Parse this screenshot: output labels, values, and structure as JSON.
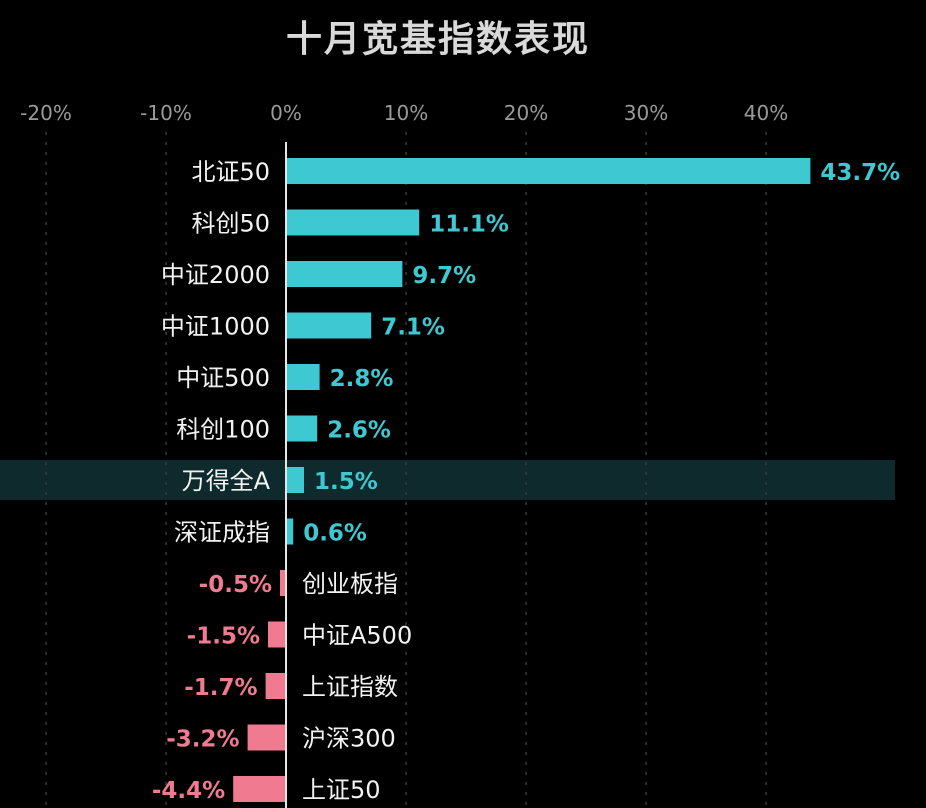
{
  "chart_data": {
    "type": "bar",
    "orientation": "horizontal",
    "title": "十月宽基指数表现",
    "xlabel": "",
    "ylabel": "",
    "xlim": [
      -20,
      45
    ],
    "x_ticks": [
      -20,
      -10,
      0,
      10,
      20,
      30,
      40
    ],
    "x_tick_labels": [
      "-20%",
      "-10%",
      "0%",
      "10%",
      "20%",
      "30%",
      "40%"
    ],
    "grid": "vertical-dashed",
    "legend": "none",
    "categories": [
      "北证50",
      "科创50",
      "中证2000",
      "中证1000",
      "中证500",
      "科创100",
      "万得全A",
      "深证成指",
      "创业板指",
      "中证A500",
      "上证指数",
      "沪深300",
      "上证50"
    ],
    "values": [
      43.7,
      11.1,
      9.7,
      7.1,
      2.8,
      2.6,
      1.5,
      0.6,
      -0.5,
      -1.5,
      -1.7,
      -3.2,
      -4.4
    ],
    "value_labels": [
      "43.7%",
      "11.1%",
      "9.7%",
      "7.1%",
      "2.8%",
      "2.6%",
      "1.5%",
      "0.6%",
      "-0.5%",
      "-1.5%",
      "-1.7%",
      "-3.2%",
      "-4.4%"
    ],
    "highlighted_category": "万得全A",
    "colors": {
      "positive": "#3ec8d2",
      "negative": "#f07a90",
      "highlight_band": "#0f2a2c",
      "axis": "#e6e6e6",
      "grid": "#3a3a3a",
      "background": "#000000"
    }
  }
}
